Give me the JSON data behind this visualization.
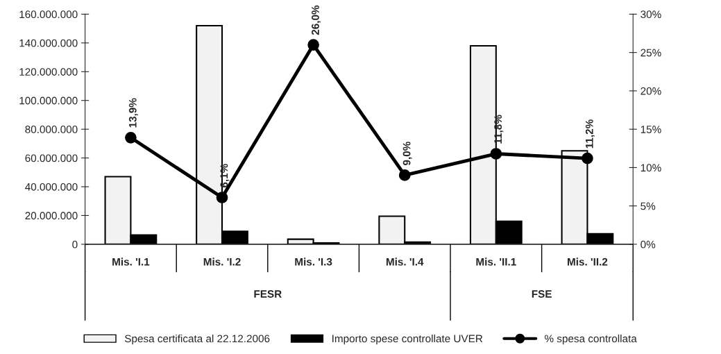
{
  "chart_data": {
    "type": "bar",
    "categories": [
      "Mis. 'I.1",
      "Mis. 'I.2",
      "Mis. 'I.3",
      "Mis. 'I.4",
      "Mis. 'II.1",
      "Mis. 'II.2"
    ],
    "series": [
      {
        "name": "Spesa certificata al 22.12.2006",
        "color": "#f2f2f2",
        "values": [
          47000000,
          152000000,
          3500000,
          19500000,
          138000000,
          65000000
        ]
      },
      {
        "name": "Importo spese controllate UVER",
        "color": "#000000",
        "values": [
          6500000,
          9000000,
          900000,
          1500000,
          16000000,
          7300000
        ]
      },
      {
        "name": "% spesa controllata",
        "type": "line",
        "axis": "y2",
        "color": "#000000",
        "marker": "circle",
        "values": [
          13.9,
          6.1,
          26.0,
          9.0,
          11.8,
          11.2
        ],
        "value_labels": [
          "13,9%",
          "6,1%",
          "26,0%",
          "9,0%",
          "11,8%",
          "11,2%"
        ]
      }
    ],
    "ylim": [
      0,
      160000000
    ],
    "yticks": [
      {
        "value": 0,
        "label": "0"
      },
      {
        "value": 20000000,
        "label": "20.000.000"
      },
      {
        "value": 40000000,
        "label": "40.000.000"
      },
      {
        "value": 60000000,
        "label": "60.000.000"
      },
      {
        "value": 80000000,
        "label": "80.000.000"
      },
      {
        "value": 100000000,
        "label": "100.000.000"
      },
      {
        "value": 120000000,
        "label": "120.000.000"
      },
      {
        "value": 140000000,
        "label": "140.000.000"
      },
      {
        "value": 160000000,
        "label": "160.000.000"
      }
    ],
    "y2lim": [
      0,
      30
    ],
    "y2ticks": [
      {
        "value": 0,
        "label": "0%"
      },
      {
        "value": 5,
        "label": "5%"
      },
      {
        "value": 10,
        "label": "10%"
      },
      {
        "value": 15,
        "label": "15%"
      },
      {
        "value": 20,
        "label": "20%"
      },
      {
        "value": 25,
        "label": "25%"
      },
      {
        "value": 30,
        "label": "30%"
      }
    ],
    "annotations": [
      "FESR",
      "FSE"
    ],
    "grid": false,
    "legend": "bottom"
  }
}
